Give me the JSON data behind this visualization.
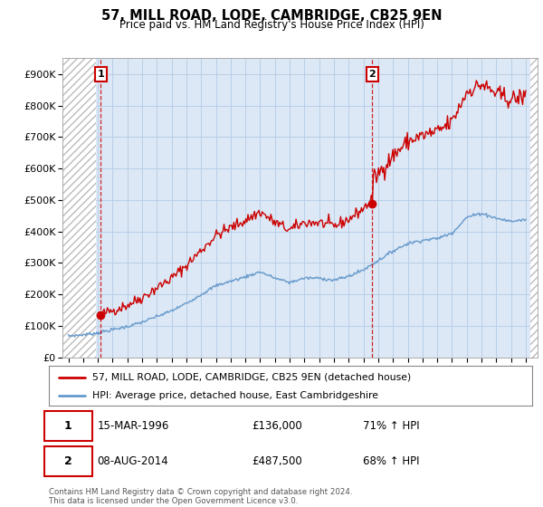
{
  "title": "57, MILL ROAD, LODE, CAMBRIDGE, CB25 9EN",
  "subtitle": "Price paid vs. HM Land Registry's House Price Index (HPI)",
  "legend_line1": "57, MILL ROAD, LODE, CAMBRIDGE, CB25 9EN (detached house)",
  "legend_line2": "HPI: Average price, detached house, East Cambridgeshire",
  "annotation1_label": "1",
  "annotation1_date": "15-MAR-1996",
  "annotation1_price": "£136,000",
  "annotation1_hpi": "71% ↑ HPI",
  "annotation2_label": "2",
  "annotation2_date": "08-AUG-2014",
  "annotation2_price": "£487,500",
  "annotation2_hpi": "68% ↑ HPI",
  "footer": "Contains HM Land Registry data © Crown copyright and database right 2024.\nThis data is licensed under the Open Government Licence v3.0.",
  "property_color": "#cc0000",
  "hpi_color": "#6699cc",
  "plot_bg": "#dce8f5",
  "hatch_bg": "#ffffff",
  "ylim": [
    0,
    950000
  ],
  "yticks": [
    0,
    100000,
    200000,
    300000,
    400000,
    500000,
    600000,
    700000,
    800000,
    900000
  ],
  "sale1_year": 1996.2,
  "sale1_value": 136000,
  "sale2_year": 2014.6,
  "sale2_value": 487500,
  "xlim_left": 1993.6,
  "xlim_right": 2025.8,
  "hpi_years": [
    1994,
    1995,
    1996,
    1997,
    1998,
    1999,
    2000,
    2001,
    2002,
    2003,
    2004,
    2005,
    2006,
    2007,
    2008,
    2009,
    2010,
    2011,
    2012,
    2013,
    2014,
    2015,
    2016,
    2017,
    2018,
    2019,
    2020,
    2021,
    2022,
    2023,
    2024,
    2025
  ],
  "hpi_values": [
    68000,
    72000,
    78000,
    88000,
    98000,
    112000,
    130000,
    148000,
    172000,
    200000,
    228000,
    242000,
    256000,
    272000,
    252000,
    238000,
    252000,
    252000,
    245000,
    258000,
    278000,
    308000,
    338000,
    362000,
    372000,
    378000,
    395000,
    445000,
    458000,
    442000,
    432000,
    438000
  ]
}
